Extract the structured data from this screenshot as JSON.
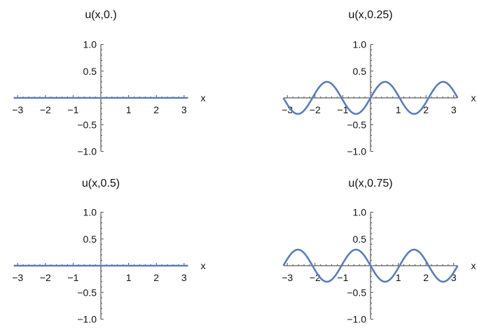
{
  "chart_data": [
    {
      "type": "line",
      "title": "u(x,0.)",
      "xlabel": "x",
      "ylabel": "",
      "xlim": [
        -3.14159,
        3.14159
      ],
      "ylim": [
        -1.0,
        1.0
      ],
      "xticks": [
        "−3",
        "−2",
        "−1",
        "1",
        "2",
        "3"
      ],
      "yticks": [
        "1.0",
        "0.5",
        "−0.5",
        "−1.0"
      ],
      "grid": false,
      "series": [
        {
          "function": "0.3*sin(3x)*sin(2πt)",
          "t": 0.0,
          "color": "#5B7DB6"
        }
      ]
    },
    {
      "type": "line",
      "title": "u(x,0.25)",
      "xlabel": "x",
      "ylabel": "",
      "xlim": [
        -3.14159,
        3.14159
      ],
      "ylim": [
        -1.0,
        1.0
      ],
      "xticks": [
        "−3",
        "−2",
        "−1",
        "1",
        "2",
        "3"
      ],
      "yticks": [
        "1.0",
        "0.5",
        "−0.5",
        "−1.0"
      ],
      "grid": false,
      "series": [
        {
          "function": "0.3*sin(3x)*sin(2πt)",
          "t": 0.25,
          "color": "#5B7DB6"
        }
      ]
    },
    {
      "type": "line",
      "title": "u(x,0.5)",
      "xlabel": "x",
      "ylabel": "",
      "xlim": [
        -3.14159,
        3.14159
      ],
      "ylim": [
        -1.0,
        1.0
      ],
      "xticks": [
        "−3",
        "−2",
        "−1",
        "1",
        "2",
        "3"
      ],
      "yticks": [
        "1.0",
        "0.5",
        "−0.5",
        "−1.0"
      ],
      "grid": false,
      "series": [
        {
          "function": "0.3*sin(3x)*sin(2πt)",
          "t": 0.5,
          "color": "#5B7DB6"
        }
      ]
    },
    {
      "type": "line",
      "title": "u(x,0.75)",
      "xlabel": "x",
      "ylabel": "",
      "xlim": [
        -3.14159,
        3.14159
      ],
      "ylim": [
        -1.0,
        1.0
      ],
      "xticks": [
        "−3",
        "−2",
        "−1",
        "1",
        "2",
        "3"
      ],
      "yticks": [
        "1.0",
        "0.5",
        "−0.5",
        "−1.0"
      ],
      "grid": false,
      "series": [
        {
          "function": "0.3*sin(3x)*sin(2πt)",
          "t": 0.75,
          "color": "#5B7DB6"
        }
      ]
    }
  ]
}
